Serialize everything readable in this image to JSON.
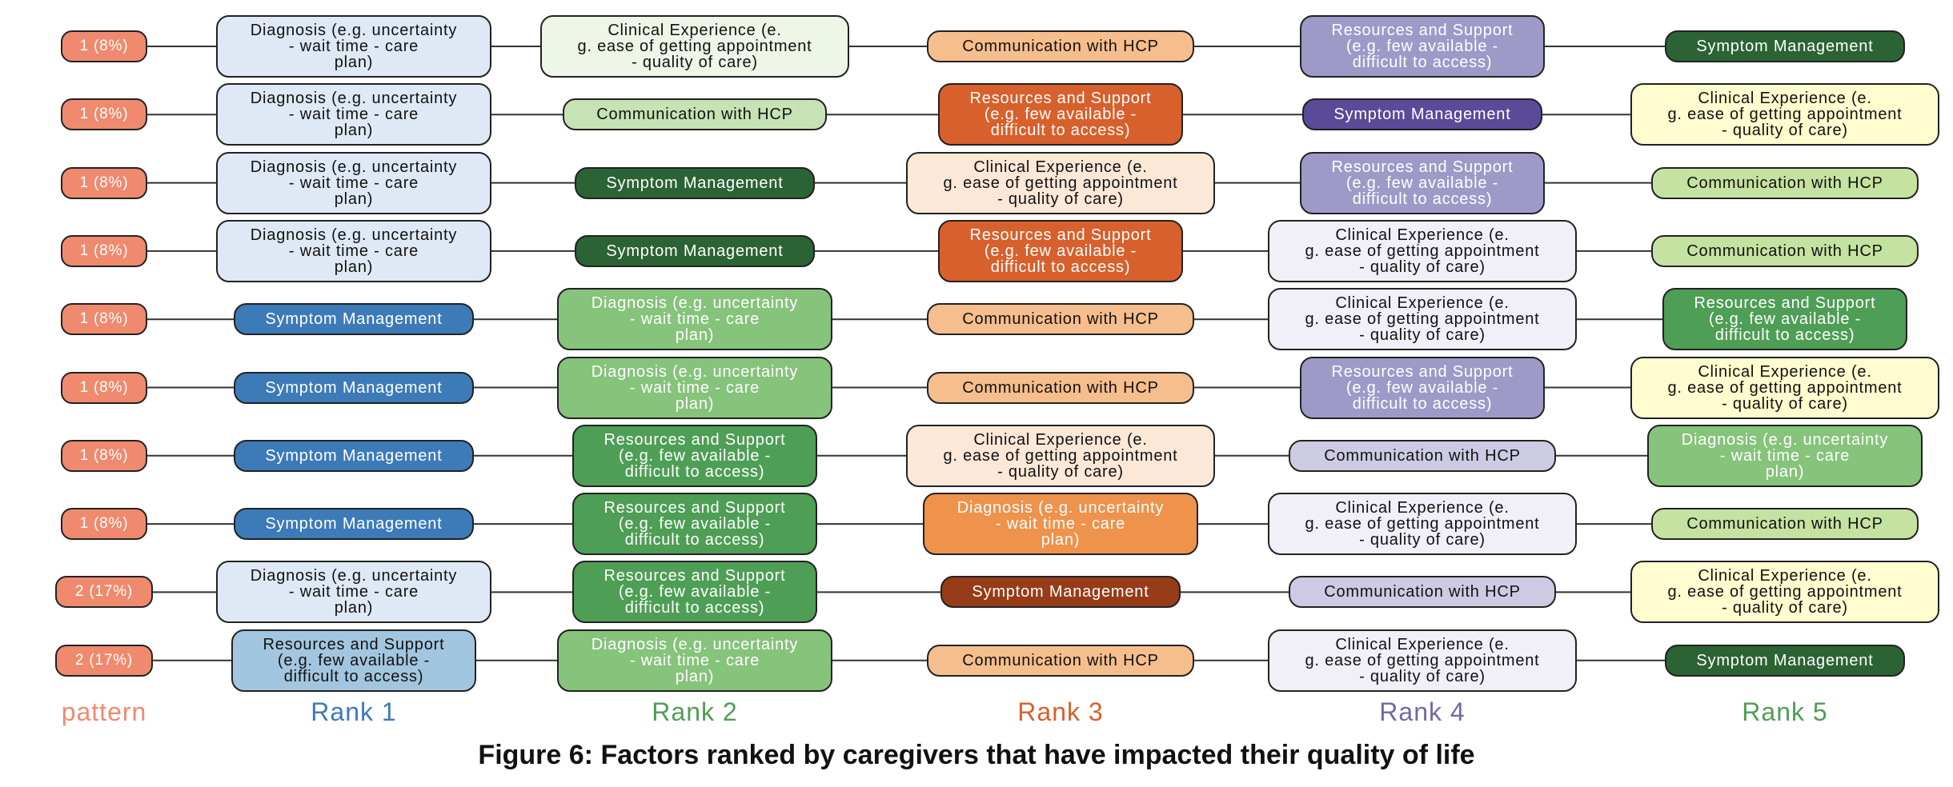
{
  "caption": "Figure 6: Factors ranked by caregivers that have impacted their quality of life",
  "columns": {
    "pattern": "pattern",
    "rank1": "Rank 1",
    "rank2": "Rank 2",
    "rank3": "Rank 3",
    "rank4": "Rank 4",
    "rank5": "Rank 5"
  },
  "column_colors": {
    "pattern": "#ef8a6f",
    "rank1": "#3d7ab8",
    "rank2": "#4e9e55",
    "rank3": "#d8602c",
    "rank4": "#7466a8",
    "rank5": "#4e9e55"
  },
  "factor_labels": {
    "diag": "Diagnosis (e.g. uncertainty\n -  wait time -  care\nplan)",
    "clin": "Clinical Experience (e.\ng. ease of getting appointment\n -  quality of care)",
    "comm": "Communication with HCP",
    "res": "Resources and Support\n(e.g. few available -\ndifficult to access)",
    "symp": "Symptom Management"
  },
  "rows": [
    {
      "pattern": "1 (8%)",
      "ranks": [
        "diag",
        "clin",
        "comm",
        "res",
        "symp"
      ]
    },
    {
      "pattern": "1 (8%)",
      "ranks": [
        "diag",
        "comm",
        "res",
        "symp",
        "clin"
      ]
    },
    {
      "pattern": "1 (8%)",
      "ranks": [
        "diag",
        "symp",
        "clin",
        "res",
        "comm"
      ]
    },
    {
      "pattern": "1 (8%)",
      "ranks": [
        "diag",
        "symp",
        "res",
        "clin",
        "comm"
      ]
    },
    {
      "pattern": "1 (8%)",
      "ranks": [
        "symp",
        "diag",
        "comm",
        "clin",
        "res"
      ]
    },
    {
      "pattern": "1 (8%)",
      "ranks": [
        "symp",
        "diag",
        "comm",
        "res",
        "clin"
      ]
    },
    {
      "pattern": "1 (8%)",
      "ranks": [
        "symp",
        "res",
        "clin",
        "comm",
        "diag"
      ]
    },
    {
      "pattern": "1 (8%)",
      "ranks": [
        "symp",
        "res",
        "diag",
        "clin",
        "comm"
      ]
    },
    {
      "pattern": "2 (17%)",
      "ranks": [
        "diag",
        "res",
        "symp",
        "comm",
        "clin"
      ]
    },
    {
      "pattern": "2 (17%)",
      "ranks": [
        "res",
        "diag",
        "comm",
        "clin",
        "symp"
      ]
    }
  ],
  "node_colors": {
    "pattern": {
      "bg": "#ef8a6f",
      "fg": "#ffffff"
    },
    "rank1": {
      "diag": {
        "bg": "#dfe9f5",
        "fg": "#111111"
      },
      "symp": {
        "bg": "#3d7ab8",
        "fg": "#ffffff"
      },
      "res": {
        "bg": "#a3c6e0",
        "fg": "#111111"
      }
    },
    "rank2": {
      "clin": {
        "bg": "#eef6e8",
        "fg": "#111111"
      },
      "comm": {
        "bg": "#c5e3b4",
        "fg": "#111111"
      },
      "symp": {
        "bg": "#2b6334",
        "fg": "#ffffff"
      },
      "diag": {
        "bg": "#86c37b",
        "fg": "#ffffff"
      },
      "res": {
        "bg": "#4e9e55",
        "fg": "#ffffff"
      }
    },
    "rank3": {
      "comm": {
        "bg": "#f5be8c",
        "fg": "#111111"
      },
      "res": {
        "bg": "#d8602c",
        "fg": "#ffffff"
      },
      "clin": {
        "bg": "#fbe8d7",
        "fg": "#111111"
      },
      "diag": {
        "bg": "#ee924c",
        "fg": "#ffffff"
      },
      "symp": {
        "bg": "#963c18",
        "fg": "#ffffff"
      }
    },
    "rank4": {
      "res": {
        "bg": "#9d9ac8",
        "fg": "#ffffff"
      },
      "symp": {
        "bg": "#5b4a98",
        "fg": "#ffffff"
      },
      "clin": {
        "bg": "#f1eff7",
        "fg": "#111111"
      },
      "comm": {
        "bg": "#cdcbe3",
        "fg": "#111111"
      }
    },
    "rank5": {
      "symp": {
        "bg": "#2b6334",
        "fg": "#ffffff"
      },
      "clin": {
        "bg": "#fffccf",
        "fg": "#111111"
      },
      "comm": {
        "bg": "#c5e3a0",
        "fg": "#111111"
      },
      "res": {
        "bg": "#4e9e55",
        "fg": "#ffffff"
      },
      "diag": {
        "bg": "#86c37b",
        "fg": "#ffffff"
      }
    }
  }
}
